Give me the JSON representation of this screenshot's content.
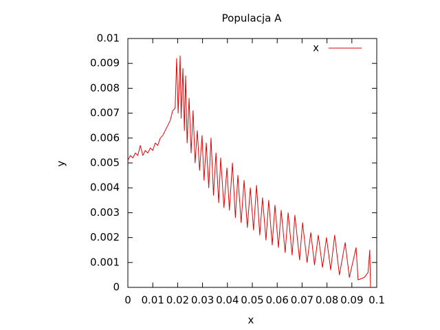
{
  "chart_data": {
    "type": "line",
    "title": "Populacja A",
    "xlabel": "x",
    "ylabel": "y",
    "xlim": [
      0,
      0.1
    ],
    "ylim": [
      0,
      0.01
    ],
    "xticks": [
      0,
      0.01,
      0.02,
      0.03,
      0.04,
      0.05,
      0.06,
      0.07,
      0.08,
      0.09,
      0.1
    ],
    "yticks": [
      0,
      0.001,
      0.002,
      0.003,
      0.004,
      0.005,
      0.006,
      0.007,
      0.008,
      0.009,
      0.01
    ],
    "legend": "top-right",
    "x": [
      0,
      0.001,
      0.002,
      0.003,
      0.004,
      0.005,
      0.006,
      0.007,
      0.008,
      0.009,
      0.01,
      0.011,
      0.012,
      0.013,
      0.014,
      0.015,
      0.016,
      0.017,
      0.018,
      0.019,
      0.0196,
      0.0202,
      0.021,
      0.0214,
      0.0221,
      0.0227,
      0.0232,
      0.0238,
      0.0246,
      0.0254,
      0.0262,
      0.027,
      0.0279,
      0.0288,
      0.0298,
      0.0306,
      0.0315,
      0.0325,
      0.0334,
      0.0344,
      0.0354,
      0.0365,
      0.0373,
      0.0386,
      0.0398,
      0.0408,
      0.042,
      0.0432,
      0.0442,
      0.0455,
      0.0467,
      0.048,
      0.0492,
      0.0505,
      0.0517,
      0.053,
      0.0541,
      0.0555,
      0.0566,
      0.058,
      0.0591,
      0.0605,
      0.0616,
      0.0632,
      0.0644,
      0.066,
      0.0671,
      0.069,
      0.0702,
      0.072,
      0.0735,
      0.075,
      0.0765,
      0.0782,
      0.0798,
      0.0815,
      0.0831,
      0.085,
      0.0873,
      0.089,
      0.0917,
      0.0925,
      0.095,
      0.0965,
      0.0972,
      0.0975
    ],
    "series": [
      {
        "name": "x",
        "color": "#e00000",
        "values": [
          0.0051,
          0.0053,
          0.0052,
          0.0054,
          0.0053,
          0.0057,
          0.0053,
          0.0055,
          0.0054,
          0.0056,
          0.0055,
          0.0058,
          0.0057,
          0.006,
          0.0061,
          0.0063,
          0.0065,
          0.0067,
          0.0071,
          0.0072,
          0.0092,
          0.007,
          0.0093,
          0.0068,
          0.0088,
          0.0063,
          0.0085,
          0.0058,
          0.0076,
          0.0054,
          0.0071,
          0.005,
          0.0063,
          0.0047,
          0.0061,
          0.0043,
          0.0058,
          0.004,
          0.006,
          0.0037,
          0.0054,
          0.0034,
          0.0052,
          0.0032,
          0.0048,
          0.0031,
          0.005,
          0.0028,
          0.0045,
          0.0026,
          0.0043,
          0.0024,
          0.004,
          0.0023,
          0.0041,
          0.0021,
          0.0036,
          0.0019,
          0.0035,
          0.0017,
          0.0033,
          0.0016,
          0.0031,
          0.0014,
          0.003,
          0.0013,
          0.0029,
          0.0011,
          0.0026,
          0.001,
          0.0022,
          0.0009,
          0.0021,
          0.0008,
          0.002,
          0.0007,
          0.0021,
          0.0005,
          0.0018,
          0.0004,
          0.0016,
          0.0003,
          0.0004,
          0.0006,
          0.0015,
          0
        ]
      }
    ]
  }
}
